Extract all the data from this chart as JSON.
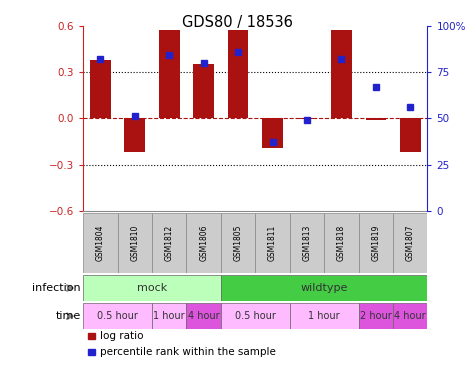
{
  "title": "GDS80 / 18536",
  "samples": [
    "GSM1804",
    "GSM1810",
    "GSM1812",
    "GSM1806",
    "GSM1805",
    "GSM1811",
    "GSM1813",
    "GSM1818",
    "GSM1819",
    "GSM1807"
  ],
  "log_ratios": [
    0.38,
    -0.22,
    0.57,
    0.35,
    0.57,
    -0.19,
    -0.005,
    0.57,
    -0.01,
    -0.22
  ],
  "percentile_ranks": [
    82,
    51,
    84,
    80,
    86,
    37,
    49,
    82,
    67,
    56
  ],
  "bar_color": "#aa1111",
  "dot_color": "#2222cc",
  "ylim": [
    -0.6,
    0.6
  ],
  "yticks": [
    -0.6,
    -0.3,
    0.0,
    0.3,
    0.6
  ],
  "y2lim": [
    0,
    100
  ],
  "y2ticks": [
    0,
    25,
    50,
    75,
    100
  ],
  "y2ticklabels": [
    "0",
    "25",
    "50",
    "75",
    "100%"
  ],
  "dotted_lines": [
    -0.3,
    0.3
  ],
  "dashed_zero": 0.0,
  "infection_groups": [
    {
      "label": "mock",
      "start": 0,
      "end": 4,
      "color": "#bbffbb"
    },
    {
      "label": "wildtype",
      "start": 4,
      "end": 10,
      "color": "#44cc44"
    }
  ],
  "time_groups": [
    {
      "label": "0.5 hour",
      "start": 0,
      "end": 2,
      "color": "#ffbbff"
    },
    {
      "label": "1 hour",
      "start": 2,
      "end": 3,
      "color": "#ffbbff"
    },
    {
      "label": "4 hour",
      "start": 3,
      "end": 4,
      "color": "#dd55dd"
    },
    {
      "label": "0.5 hour",
      "start": 4,
      "end": 6,
      "color": "#ffbbff"
    },
    {
      "label": "1 hour",
      "start": 6,
      "end": 8,
      "color": "#ffbbff"
    },
    {
      "label": "2 hour",
      "start": 8,
      "end": 9,
      "color": "#dd55dd"
    },
    {
      "label": "4 hour",
      "start": 9,
      "end": 10,
      "color": "#dd55dd"
    }
  ],
  "legend_items": [
    {
      "label": "log ratio",
      "color": "#aa1111"
    },
    {
      "label": "percentile rank within the sample",
      "color": "#2222cc"
    }
  ],
  "infection_label": "infection",
  "time_label": "time",
  "tick_color_left": "#cc2222",
  "tick_color_right": "#2222cc",
  "arrow_color": "#888888"
}
